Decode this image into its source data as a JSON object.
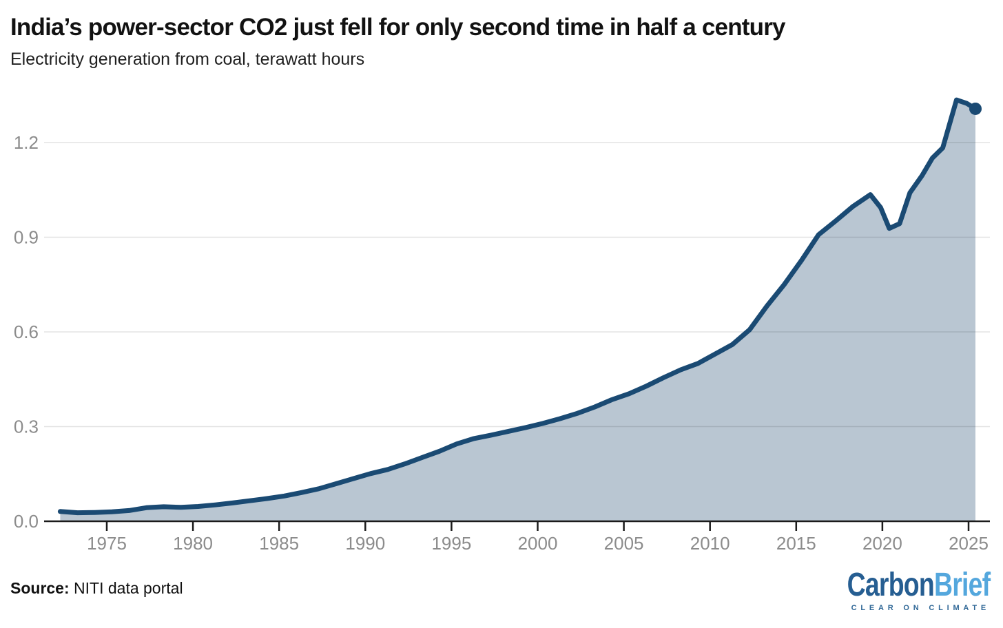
{
  "header": {
    "title": "India’s power-sector CO2 just fell for only second time in half a century",
    "subtitle": "Electricity generation from coal, terawatt hours"
  },
  "footer": {
    "source_label": "Source:",
    "source_text": "NITI data portal",
    "logo": {
      "part1": "Carbon",
      "part2": "Brief",
      "tagline": "CLEAR ON CLIMATE"
    }
  },
  "chart_data": {
    "type": "area",
    "title": "India’s power-sector CO2 just fell for only second time in half a century",
    "subtitle": "Electricity generation from coal, terawatt hours",
    "xlabel": "",
    "ylabel": "",
    "x_ticks": [
      1975,
      1980,
      1985,
      1990,
      1995,
      2000,
      2005,
      2010,
      2015,
      2020,
      2025
    ],
    "y_ticks": [
      {
        "value": 0.0,
        "label": "0.0"
      },
      {
        "value": 0.3,
        "label": "0.3"
      },
      {
        "value": 0.6,
        "label": "0.6"
      },
      {
        "value": 0.9,
        "label": "0.9"
      },
      {
        "value": 1.2,
        "label": "1.2"
      }
    ],
    "xlim": [
      1971.6,
      2026.3
    ],
    "ylim": [
      0,
      1.38
    ],
    "grid": "horizontal",
    "legend_position": "none",
    "series": [
      {
        "name": "Electricity generation from coal",
        "points": [
          [
            1972,
            0.031
          ],
          [
            1973,
            0.027
          ],
          [
            1974,
            0.028
          ],
          [
            1975,
            0.03
          ],
          [
            1976,
            0.034
          ],
          [
            1977,
            0.043
          ],
          [
            1978,
            0.046
          ],
          [
            1979,
            0.044
          ],
          [
            1980,
            0.047
          ],
          [
            1981,
            0.052
          ],
          [
            1982,
            0.058
          ],
          [
            1983,
            0.065
          ],
          [
            1984,
            0.072
          ],
          [
            1985,
            0.08
          ],
          [
            1986,
            0.091
          ],
          [
            1987,
            0.103
          ],
          [
            1988,
            0.119
          ],
          [
            1989,
            0.135
          ],
          [
            1990,
            0.151
          ],
          [
            1991,
            0.164
          ],
          [
            1992,
            0.182
          ],
          [
            1993,
            0.202
          ],
          [
            1994,
            0.222
          ],
          [
            1995,
            0.245
          ],
          [
            1996,
            0.262
          ],
          [
            1997,
            0.273
          ],
          [
            1998,
            0.285
          ],
          [
            1999,
            0.297
          ],
          [
            2000,
            0.31
          ],
          [
            2001,
            0.325
          ],
          [
            2002,
            0.342
          ],
          [
            2003,
            0.362
          ],
          [
            2004,
            0.385
          ],
          [
            2005,
            0.404
          ],
          [
            2006,
            0.428
          ],
          [
            2007,
            0.455
          ],
          [
            2008,
            0.48
          ],
          [
            2009,
            0.5
          ],
          [
            2010,
            0.53
          ],
          [
            2011,
            0.56
          ],
          [
            2012,
            0.607
          ],
          [
            2013,
            0.682
          ],
          [
            2014,
            0.75
          ],
          [
            2015,
            0.826
          ],
          [
            2016,
            0.908
          ],
          [
            2017,
            0.952
          ],
          [
            2018,
            0.998
          ],
          [
            2019,
            1.035
          ],
          [
            2019.6,
            0.994
          ],
          [
            2020.1,
            0.928
          ],
          [
            2020.7,
            0.943
          ],
          [
            2021.3,
            1.041
          ],
          [
            2022,
            1.095
          ],
          [
            2022.6,
            1.151
          ],
          [
            2023.2,
            1.183
          ],
          [
            2024,
            1.335
          ],
          [
            2024.6,
            1.324
          ],
          [
            2025.1,
            1.307
          ]
        ]
      }
    ],
    "end_dot": {
      "x": 2025.1,
      "y": 1.307
    },
    "colors": {
      "line": "#1a4a73",
      "fill": "#b9c6d2",
      "dot": "#1a4a73",
      "grid": "rgba(0,0,0,0.11)",
      "axis": "#1b1b1b",
      "tick_label": "#8c8c8c"
    }
  }
}
